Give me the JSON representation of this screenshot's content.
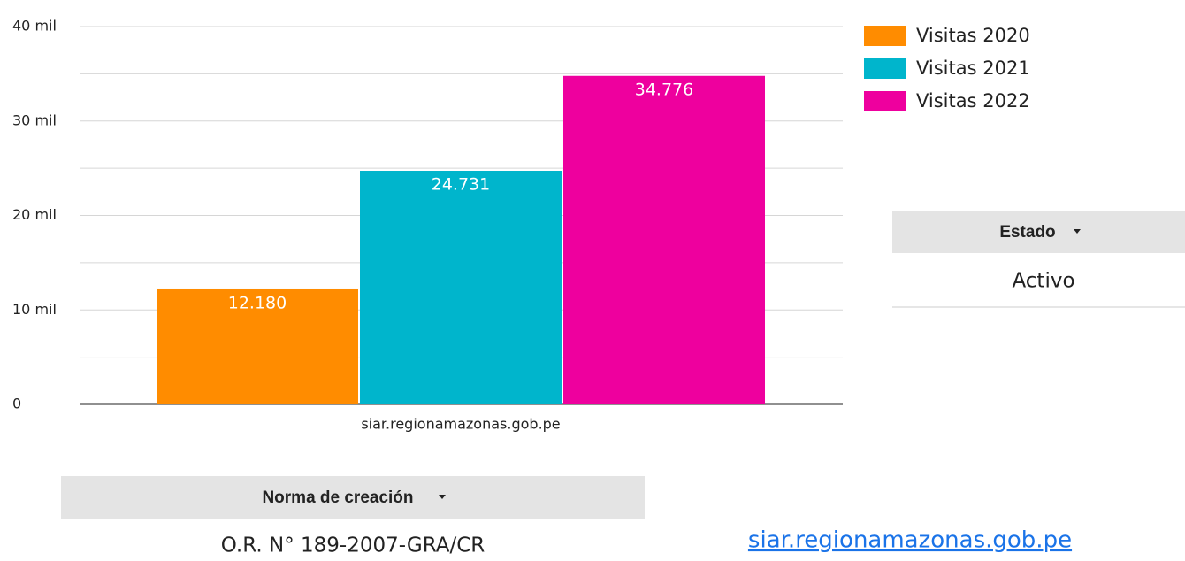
{
  "chart_data": {
    "type": "bar",
    "categories": [
      "siar.regionamazonas.gob.pe"
    ],
    "series": [
      {
        "name": "Visitas 2020",
        "color": "#ff8c00",
        "values": [
          12180
        ],
        "value_labels": [
          "12.180"
        ]
      },
      {
        "name": "Visitas 2021",
        "color": "#00b5cc",
        "values": [
          24731
        ],
        "value_labels": [
          "24.731"
        ]
      },
      {
        "name": "Visitas 2022",
        "color": "#ee009e",
        "values": [
          34776
        ],
        "value_labels": [
          "34.776"
        ]
      }
    ],
    "ylim": [
      0,
      40000
    ],
    "yticks": [
      0,
      {
        "value": 10000,
        "label": "10 mil"
      },
      {
        "value": 20000,
        "label": "20 mil"
      },
      {
        "value": 30000,
        "label": "30 mil"
      },
      {
        "value": 40000,
        "label": "40 mil"
      }
    ],
    "minor_yticks": [
      5000,
      15000,
      25000,
      35000
    ],
    "grid": true,
    "legend": "right"
  },
  "estado": {
    "header": "Estado",
    "rows": [
      "Activo"
    ]
  },
  "norma": {
    "header": "Norma de creación",
    "rows": [
      "O.R. N° 189-2007-GRA/CR"
    ]
  },
  "link": "siar.regionamazonas.gob.pe"
}
